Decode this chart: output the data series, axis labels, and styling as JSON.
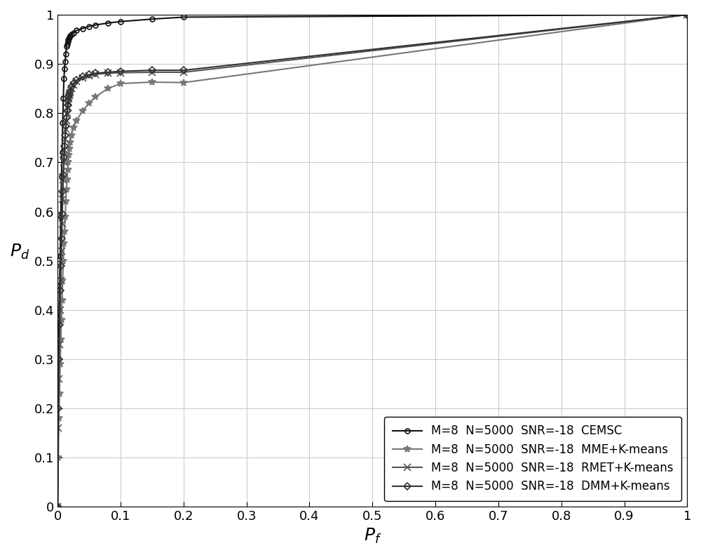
{
  "xlabel": "$P_f$",
  "ylabel": "$P_d$",
  "xlim": [
    0,
    1
  ],
  "ylim": [
    0,
    1
  ],
  "xticks": [
    0,
    0.1,
    0.2,
    0.3,
    0.4,
    0.5,
    0.6,
    0.7,
    0.8,
    0.9,
    1
  ],
  "yticks": [
    0,
    0.1,
    0.2,
    0.3,
    0.4,
    0.5,
    0.6,
    0.7,
    0.8,
    0.9,
    1
  ],
  "series": [
    {
      "label": "M=8  N=5000  SNR=-18  CEMSC",
      "color": "#111111",
      "marker": "o",
      "markersize": 5,
      "linewidth": 1.5,
      "markerfacecolor": "none",
      "x": [
        0.0,
        0.001,
        0.002,
        0.003,
        0.004,
        0.005,
        0.006,
        0.007,
        0.008,
        0.009,
        0.01,
        0.011,
        0.012,
        0.013,
        0.014,
        0.015,
        0.016,
        0.017,
        0.018,
        0.019,
        0.02,
        0.022,
        0.025,
        0.03,
        0.04,
        0.05,
        0.06,
        0.08,
        0.1,
        0.15,
        0.2,
        1.0
      ],
      "y": [
        0.0,
        0.3,
        0.38,
        0.45,
        0.51,
        0.59,
        0.67,
        0.72,
        0.78,
        0.83,
        0.87,
        0.89,
        0.905,
        0.92,
        0.935,
        0.94,
        0.945,
        0.948,
        0.952,
        0.954,
        0.957,
        0.96,
        0.963,
        0.968,
        0.972,
        0.976,
        0.979,
        0.983,
        0.986,
        0.991,
        0.995,
        1.0
      ]
    },
    {
      "label": "M=8  N=5000  SNR=-18  MME+K-means",
      "color": "#777777",
      "marker": "*",
      "markersize": 7,
      "linewidth": 1.5,
      "markerfacecolor": "#777777",
      "x": [
        0.0,
        0.001,
        0.002,
        0.003,
        0.004,
        0.005,
        0.006,
        0.007,
        0.008,
        0.009,
        0.01,
        0.011,
        0.012,
        0.013,
        0.014,
        0.015,
        0.016,
        0.017,
        0.018,
        0.019,
        0.02,
        0.022,
        0.025,
        0.03,
        0.04,
        0.05,
        0.06,
        0.08,
        0.1,
        0.15,
        0.2,
        1.0
      ],
      "y": [
        0.0,
        0.1,
        0.18,
        0.23,
        0.29,
        0.34,
        0.38,
        0.42,
        0.46,
        0.5,
        0.535,
        0.56,
        0.59,
        0.62,
        0.645,
        0.665,
        0.685,
        0.7,
        0.715,
        0.728,
        0.74,
        0.755,
        0.77,
        0.785,
        0.805,
        0.82,
        0.833,
        0.85,
        0.86,
        0.863,
        0.862,
        1.0
      ]
    },
    {
      "label": "M=8  N=5000  SNR=-18  RMET+K-means",
      "color": "#555555",
      "marker": "x",
      "markersize": 7,
      "linewidth": 1.5,
      "markerfacecolor": "#555555",
      "x": [
        0.0,
        0.001,
        0.002,
        0.003,
        0.004,
        0.005,
        0.006,
        0.007,
        0.008,
        0.009,
        0.01,
        0.011,
        0.012,
        0.013,
        0.014,
        0.015,
        0.016,
        0.017,
        0.018,
        0.019,
        0.02,
        0.022,
        0.025,
        0.03,
        0.04,
        0.05,
        0.06,
        0.08,
        0.1,
        0.15,
        0.2,
        1.0
      ],
      "y": [
        0.0,
        0.16,
        0.26,
        0.33,
        0.4,
        0.46,
        0.52,
        0.575,
        0.625,
        0.665,
        0.7,
        0.725,
        0.748,
        0.768,
        0.785,
        0.8,
        0.812,
        0.822,
        0.83,
        0.836,
        0.842,
        0.85,
        0.858,
        0.864,
        0.872,
        0.876,
        0.879,
        0.881,
        0.882,
        0.883,
        0.883,
        1.0
      ]
    },
    {
      "label": "M=8  N=5000  SNR=-18  DMM+K-means",
      "color": "#333333",
      "marker": "D",
      "markersize": 5,
      "linewidth": 1.5,
      "markerfacecolor": "none",
      "x": [
        0.0,
        0.001,
        0.002,
        0.003,
        0.004,
        0.005,
        0.006,
        0.007,
        0.008,
        0.009,
        0.01,
        0.011,
        0.012,
        0.013,
        0.014,
        0.015,
        0.016,
        0.017,
        0.018,
        0.019,
        0.02,
        0.022,
        0.025,
        0.03,
        0.04,
        0.05,
        0.06,
        0.08,
        0.1,
        0.15,
        0.2,
        1.0
      ],
      "y": [
        0.0,
        0.2,
        0.3,
        0.37,
        0.44,
        0.49,
        0.545,
        0.595,
        0.64,
        0.675,
        0.71,
        0.733,
        0.755,
        0.773,
        0.79,
        0.804,
        0.816,
        0.825,
        0.833,
        0.839,
        0.845,
        0.853,
        0.86,
        0.867,
        0.874,
        0.878,
        0.881,
        0.883,
        0.885,
        0.887,
        0.887,
        1.0
      ]
    }
  ],
  "legend_loc": "lower right",
  "grid_color": "#cccccc",
  "background_color": "#ffffff"
}
